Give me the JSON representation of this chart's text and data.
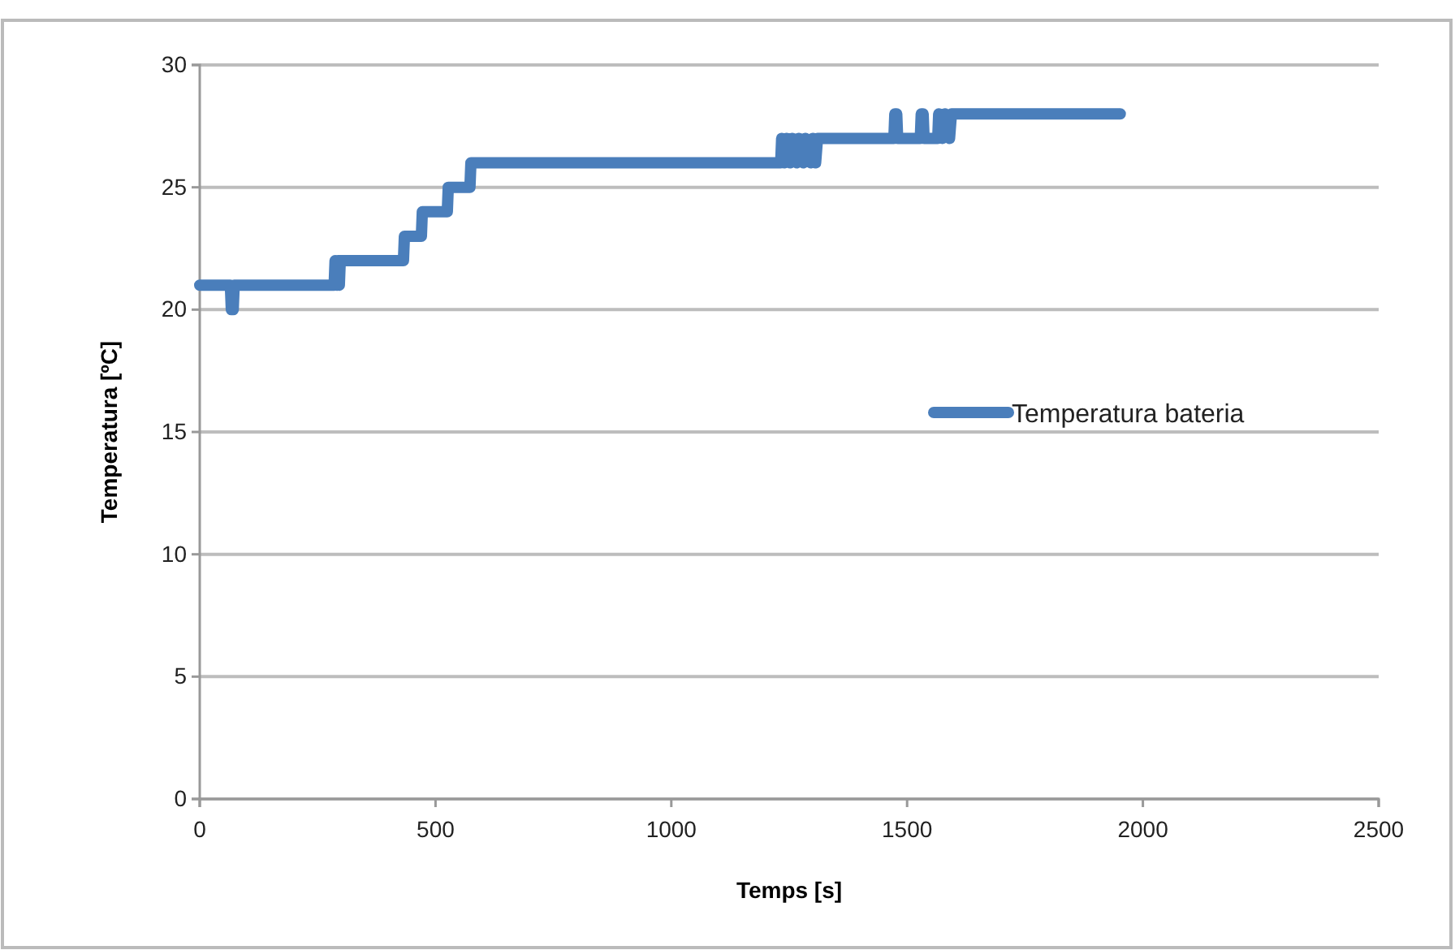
{
  "chart_data": {
    "type": "line",
    "xlabel": "Temps [s]",
    "ylabel": "Temperatura [ºC]",
    "xlim": [
      0,
      2500
    ],
    "xticks": [
      0,
      500,
      1000,
      1500,
      2000,
      2500
    ],
    "ylim": [
      0,
      30
    ],
    "yticks": [
      0,
      5,
      10,
      15,
      20,
      25,
      30
    ],
    "grid": "y",
    "legend": "right",
    "marker": "none",
    "line_style": "solid",
    "series": [
      {
        "name": "Temperatura bateria",
        "color": "#4a7ebb",
        "x": [
          0,
          65,
          67,
          71,
          73,
          285,
          287,
          291,
          293,
          296,
          298,
          432,
          434,
          470,
          472,
          525,
          527,
          573,
          575,
          1232,
          1234,
          1240,
          1244,
          1252,
          1256,
          1266,
          1270,
          1280,
          1284,
          1296,
          1300,
          1306,
          1310,
          1472,
          1474,
          1478,
          1480,
          1528,
          1530,
          1534,
          1536,
          1565,
          1567,
          1575,
          1580,
          1590,
          1594,
          1952
        ],
        "values": [
          21,
          21,
          20,
          20,
          21,
          21,
          22,
          21,
          22,
          21,
          22,
          22,
          23,
          23,
          24,
          24,
          25,
          25,
          26,
          26,
          27,
          26,
          27,
          26,
          27,
          26,
          27,
          26,
          27,
          26,
          27,
          26,
          27,
          27,
          28,
          28,
          27,
          27,
          28,
          28,
          27,
          27,
          28,
          27,
          28,
          27,
          28,
          28
        ]
      }
    ]
  }
}
